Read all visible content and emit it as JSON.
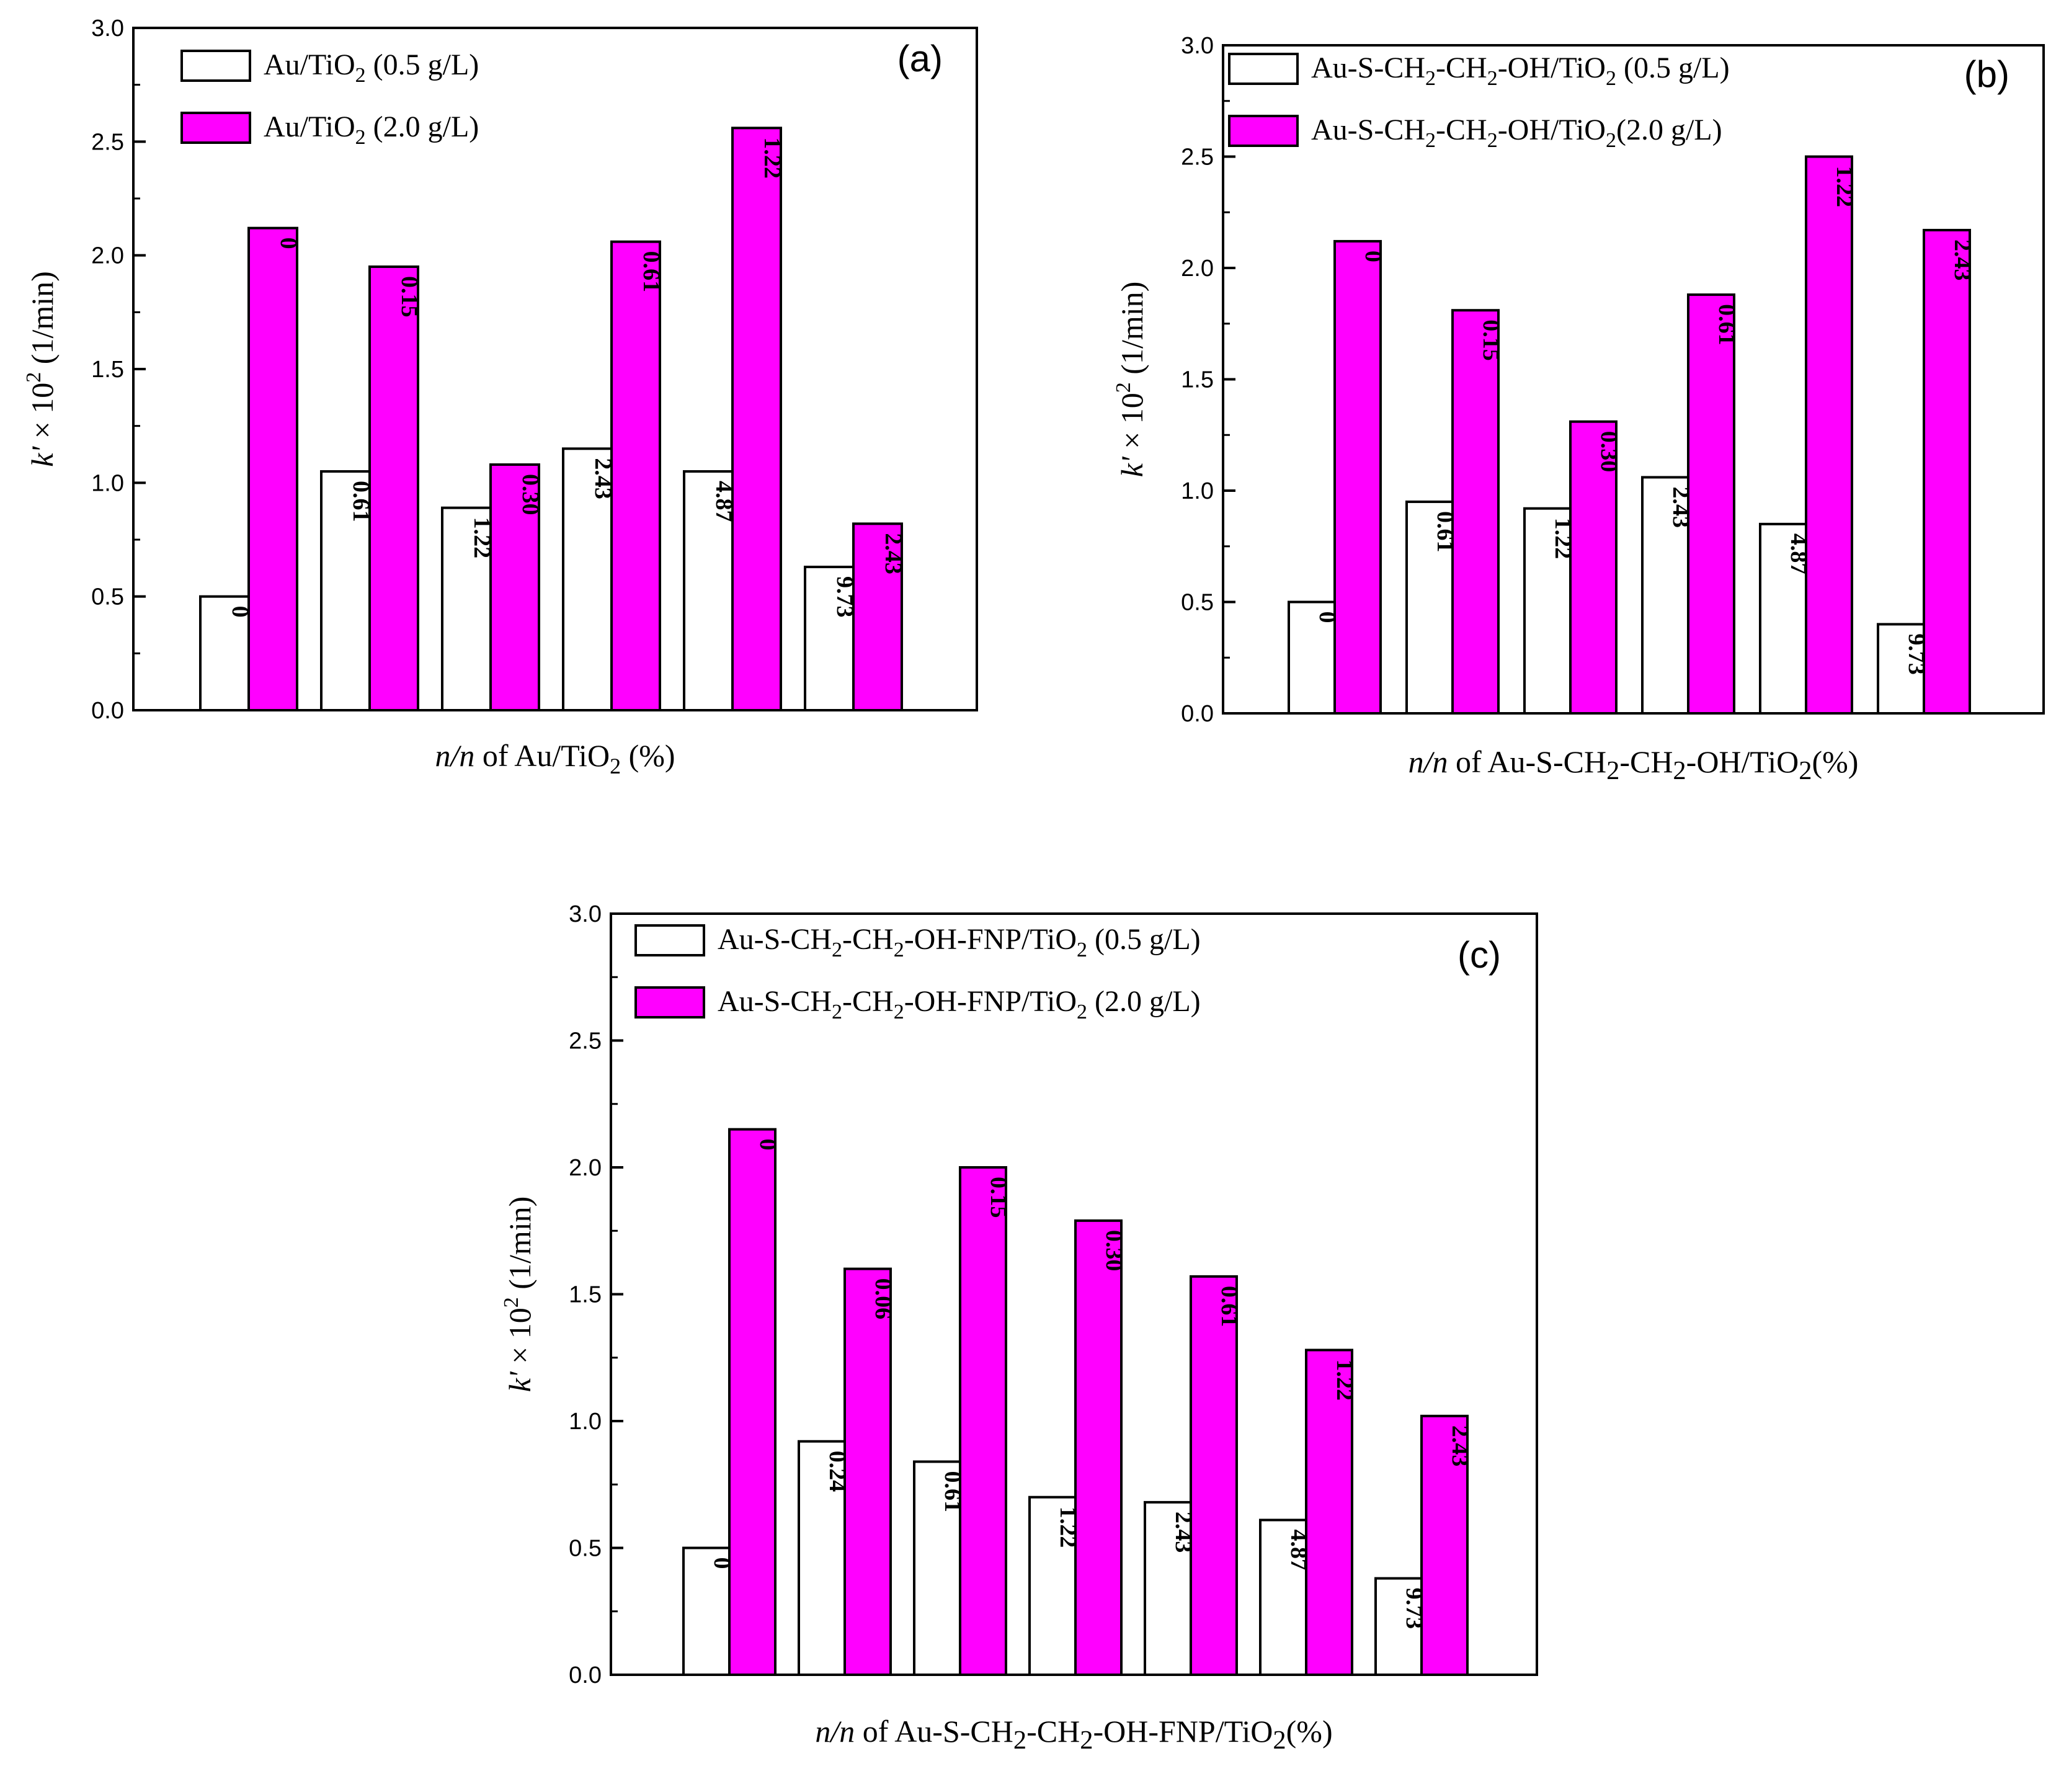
{
  "colors": {
    "series_a": "#ffffff",
    "series_b": "#ff00ff",
    "stroke": "#000000"
  },
  "chart_data": [
    {
      "type": "bar",
      "panel": "(a)",
      "ylim": [
        0,
        3.0
      ],
      "yticks": [
        "0.0",
        "0.5",
        "1.0",
        "1.5",
        "2.0",
        "2.5",
        "3.0"
      ],
      "ylabel": {
        "italic": "k'",
        "mid": " × 10",
        "sup": "2",
        "end": " (1/min)"
      },
      "xlabel": {
        "italic": "n/n",
        "text": " of Au/TiO",
        "sub": "2",
        "end": " (%)"
      },
      "legend": [
        {
          "prefix": "Au/TiO",
          "sub": "2",
          "suffix": " (0.5 g/L)"
        },
        {
          "prefix": "Au/TiO",
          "sub": "2",
          "suffix": " (2.0 g/L)"
        }
      ],
      "series": [
        {
          "name": "Au/TiO2 (0.5 g/L)",
          "values": [
            0.5,
            1.05,
            0.89,
            1.15,
            1.05,
            0.63
          ],
          "labels": [
            "0",
            "0.61",
            "1.22",
            "2.43",
            "4.87",
            "9.73"
          ]
        },
        {
          "name": "Au/TiO2 (2.0 g/L)",
          "values": [
            2.12,
            1.95,
            1.08,
            2.06,
            2.56,
            0.82
          ],
          "labels": [
            "0",
            "0.15",
            "0.30",
            "0.61",
            "1.22",
            "2.43"
          ]
        }
      ]
    },
    {
      "type": "bar",
      "panel": "(b)",
      "ylim": [
        0,
        3.0
      ],
      "yticks": [
        "0.0",
        "0.5",
        "1.0",
        "1.5",
        "2.0",
        "2.5",
        "3.0"
      ],
      "ylabel": {
        "italic": "k'",
        "mid": " × 10",
        "sup": "2",
        "end": " (1/min)"
      },
      "xlabel": {
        "italic": "n/n",
        "text": " of Au-S-CH2-CH2-OH/TiO2(%)"
      },
      "legend": [
        {
          "prefix": "Au-S-CH",
          "sub": "2",
          "mid": "-CH",
          "sub2": "2",
          "end": "-OH/TiO",
          "sub3": "2",
          "suffix": " (0.5 g/L)"
        },
        {
          "prefix": "Au-S-CH",
          "sub": "2",
          "mid": "-CH",
          "sub2": "2",
          "end": "-OH/TiO",
          "sub3": "2",
          "suffix": "(2.0 g/L)"
        }
      ],
      "series": [
        {
          "name": "Au-S-CH2-CH2-OH/TiO2 (0.5 g/L)",
          "values": [
            0.5,
            0.95,
            0.92,
            1.06,
            0.85,
            0.4
          ],
          "labels": [
            "0",
            "0.61",
            "1.22",
            "2.43",
            "4.87",
            "9.73"
          ]
        },
        {
          "name": "Au-S-CH2-CH2-OH/TiO2 (2.0 g/L)",
          "values": [
            2.12,
            1.81,
            1.31,
            1.88,
            2.5,
            2.17
          ],
          "labels": [
            "0",
            "0.15",
            "0.30",
            "0.61",
            "1.22",
            "2.43"
          ]
        }
      ]
    },
    {
      "type": "bar",
      "panel": "(c)",
      "ylim": [
        0,
        3.0
      ],
      "yticks": [
        "0.0",
        "0.5",
        "1.0",
        "1.5",
        "2.0",
        "2.5",
        "3.0"
      ],
      "ylabel": {
        "italic": "k'",
        "mid": " × 10",
        "sup": "2",
        "end": " (1/min)"
      },
      "xlabel": {
        "italic": "n/n",
        "text": " of Au-S-CH2-CH2-OH-FNP/TiO2(%)"
      },
      "legend": [
        {
          "prefix": "Au-S-CH",
          "sub": "2",
          "mid": "-CH",
          "sub2": "2",
          "end": "-OH-FNP/TiO",
          "sub3": "2",
          "suffix": " (0.5 g/L)"
        },
        {
          "prefix": "Au-S-CH",
          "sub": "2",
          "mid": "-CH",
          "sub2": "2",
          "end": "-OH-FNP/TiO",
          "sub3": "2",
          "suffix": " (2.0 g/L)"
        }
      ],
      "series": [
        {
          "name": "Au-S-CH2-CH2-OH-FNP/TiO2 (0.5 g/L)",
          "values": [
            0.5,
            0.92,
            0.84,
            0.7,
            0.68,
            0.61,
            0.38
          ],
          "labels": [
            "0",
            "0.24",
            "0.61",
            "1.22",
            "2.43",
            "4.87",
            "9.73"
          ]
        },
        {
          "name": "Au-S-CH2-CH2-OH-FNP/TiO2 (2.0 g/L)",
          "values": [
            2.15,
            1.6,
            2.0,
            1.79,
            1.57,
            1.28,
            1.02
          ],
          "labels": [
            "0",
            "0.06",
            "0.15",
            "0.30",
            "0.61",
            "1.22",
            "2.43"
          ]
        }
      ]
    }
  ]
}
